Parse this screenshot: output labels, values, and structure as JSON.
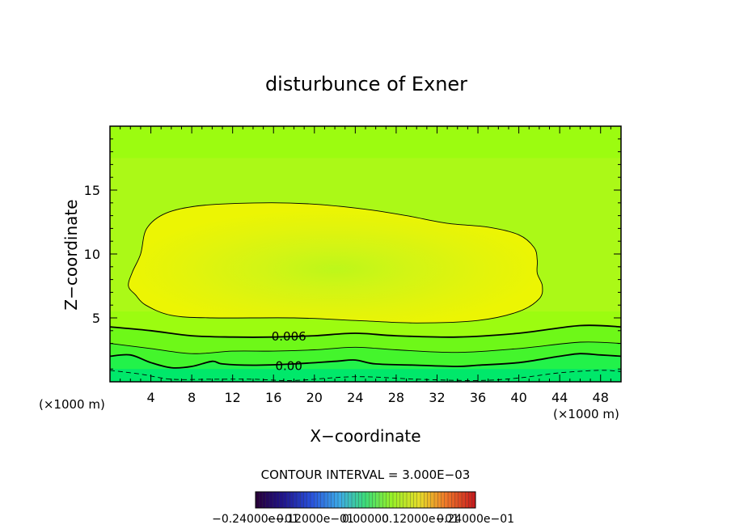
{
  "chart_data": {
    "type": "heatmap",
    "title": "disturbunce of Exner",
    "xlabel": "X−coordinate",
    "ylabel": "Z−coordinate",
    "x_unit_left": "(×1000 m)",
    "x_unit_right": "(×1000 m)",
    "xlim": [
      0,
      50
    ],
    "ylim": [
      0,
      20
    ],
    "x_ticks": [
      4,
      8,
      12,
      16,
      20,
      24,
      28,
      32,
      36,
      40,
      44,
      48
    ],
    "y_ticks": [
      5,
      10,
      15
    ],
    "x_tick_labels": [
      "4",
      "8",
      "12",
      "16",
      "20",
      "24",
      "28",
      "32",
      "36",
      "40",
      "44",
      "48"
    ],
    "y_tick_labels": [
      "5",
      "10",
      "15"
    ],
    "grid": false,
    "contour_interval_label": "CONTOUR INTERVAL = 3.000E−03",
    "colorbar_labels": [
      "−0.24000e−01",
      "−0.12000e−01",
      "0.00000",
      "0.12000e−01",
      "0.24000e−01"
    ],
    "colorbar_range": [
      -0.024,
      0.024
    ],
    "contours": [
      {
        "level": 0.0,
        "label": "0.00",
        "label_at": [
          17.5,
          1.3
        ],
        "style": "solid-thick",
        "points": [
          [
            0,
            2.0
          ],
          [
            2,
            2.1
          ],
          [
            4,
            1.5
          ],
          [
            6,
            1.1
          ],
          [
            8,
            1.2
          ],
          [
            10,
            1.6
          ],
          [
            11,
            1.4
          ],
          [
            14,
            1.3
          ],
          [
            18,
            1.4
          ],
          [
            22,
            1.6
          ],
          [
            24,
            1.7
          ],
          [
            26,
            1.4
          ],
          [
            30,
            1.3
          ],
          [
            34,
            1.2
          ],
          [
            36,
            1.3
          ],
          [
            40,
            1.5
          ],
          [
            44,
            2.0
          ],
          [
            46,
            2.2
          ],
          [
            48,
            2.1
          ],
          [
            50,
            2.0
          ]
        ]
      },
      {
        "level": 0.003,
        "label": "",
        "style": "solid-thin",
        "points": [
          [
            0,
            3.0
          ],
          [
            4,
            2.6
          ],
          [
            8,
            2.2
          ],
          [
            12,
            2.4
          ],
          [
            16,
            2.4
          ],
          [
            20,
            2.5
          ],
          [
            24,
            2.7
          ],
          [
            28,
            2.5
          ],
          [
            34,
            2.3
          ],
          [
            40,
            2.6
          ],
          [
            46,
            3.1
          ],
          [
            50,
            3.0
          ]
        ]
      },
      {
        "level": 0.006,
        "label": "0.006",
        "label_at": [
          17.5,
          3.6
        ],
        "style": "solid-thick",
        "points": [
          [
            0,
            4.3
          ],
          [
            4,
            4.0
          ],
          [
            8,
            3.6
          ],
          [
            12,
            3.5
          ],
          [
            16,
            3.5
          ],
          [
            20,
            3.6
          ],
          [
            24,
            3.8
          ],
          [
            28,
            3.6
          ],
          [
            34,
            3.5
          ],
          [
            40,
            3.8
          ],
          [
            46,
            4.4
          ],
          [
            50,
            4.3
          ]
        ]
      },
      {
        "level": 0.009,
        "label": "",
        "style": "solid-thin-closed",
        "points": [
          [
            3.6,
            12.0
          ],
          [
            5.5,
            13.2
          ],
          [
            9,
            13.8
          ],
          [
            15,
            14.0
          ],
          [
            20,
            13.9
          ],
          [
            25,
            13.5
          ],
          [
            29,
            13.0
          ],
          [
            33,
            12.4
          ],
          [
            37,
            12.1
          ],
          [
            40,
            11.5
          ],
          [
            41.5,
            10.5
          ],
          [
            41.8,
            9.5
          ],
          [
            41.8,
            8.5
          ],
          [
            42.3,
            7.5
          ],
          [
            42.0,
            6.5
          ],
          [
            40.0,
            5.5
          ],
          [
            36,
            4.8
          ],
          [
            30,
            4.6
          ],
          [
            24,
            4.8
          ],
          [
            18,
            5.0
          ],
          [
            10,
            5.0
          ],
          [
            6,
            5.2
          ],
          [
            3.5,
            6.0
          ],
          [
            2.5,
            6.8
          ],
          [
            1.8,
            7.5
          ],
          [
            2.2,
            8.6
          ],
          [
            3.0,
            10.0
          ]
        ]
      },
      {
        "level": -0.003,
        "label": "",
        "style": "dashed",
        "points": [
          [
            0,
            0.9
          ],
          [
            3,
            0.6
          ],
          [
            6,
            0.2
          ],
          [
            10,
            0.2
          ],
          [
            14,
            0.2
          ],
          [
            18,
            0.1
          ],
          [
            24,
            0.4
          ],
          [
            30,
            0.2
          ],
          [
            36,
            0.1
          ],
          [
            40,
            0.3
          ],
          [
            44,
            0.7
          ],
          [
            48,
            0.9
          ],
          [
            50,
            0.8
          ]
        ]
      }
    ],
    "fill_bands": [
      {
        "upper": [
          [
            0,
            1.0
          ],
          [
            50,
            1.0
          ]
        ],
        "color": "#00e86a"
      },
      {
        "upper": [
          [
            0,
            2.0
          ],
          [
            2,
            2.1
          ],
          [
            4,
            1.5
          ],
          [
            6,
            1.1
          ],
          [
            8,
            1.2
          ],
          [
            10,
            1.6
          ],
          [
            11,
            1.4
          ],
          [
            14,
            1.3
          ],
          [
            18,
            1.4
          ],
          [
            22,
            1.6
          ],
          [
            24,
            1.7
          ],
          [
            26,
            1.4
          ],
          [
            30,
            1.3
          ],
          [
            34,
            1.2
          ],
          [
            36,
            1.3
          ],
          [
            40,
            1.5
          ],
          [
            44,
            2.0
          ],
          [
            46,
            2.2
          ],
          [
            48,
            2.1
          ],
          [
            50,
            2.0
          ]
        ],
        "color": "#22f24a"
      },
      {
        "upper": [
          [
            0,
            3.0
          ],
          [
            4,
            2.6
          ],
          [
            8,
            2.2
          ],
          [
            12,
            2.4
          ],
          [
            16,
            2.4
          ],
          [
            20,
            2.5
          ],
          [
            24,
            2.7
          ],
          [
            28,
            2.5
          ],
          [
            34,
            2.3
          ],
          [
            40,
            2.6
          ],
          [
            46,
            3.1
          ],
          [
            50,
            3.0
          ]
        ],
        "color": "#44f52c"
      },
      {
        "upper": [
          [
            0,
            4.3
          ],
          [
            4,
            4.0
          ],
          [
            8,
            3.6
          ],
          [
            12,
            3.5
          ],
          [
            16,
            3.5
          ],
          [
            20,
            3.6
          ],
          [
            24,
            3.8
          ],
          [
            28,
            3.6
          ],
          [
            34,
            3.5
          ],
          [
            40,
            3.8
          ],
          [
            46,
            4.4
          ],
          [
            50,
            4.3
          ]
        ],
        "color": "#6ef818"
      }
    ],
    "background_color": "#9cfc10",
    "core_colors": [
      "#bdf71a",
      "#d2f515",
      "#e2f40c",
      "#ecf503"
    ]
  }
}
